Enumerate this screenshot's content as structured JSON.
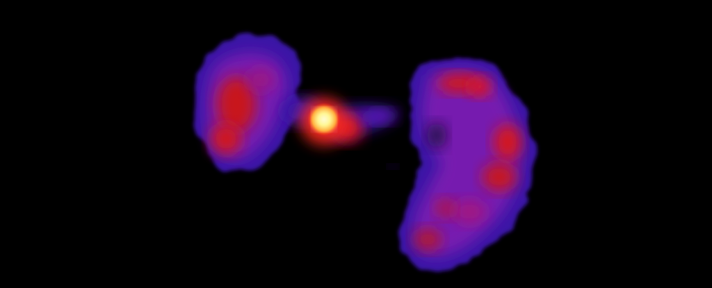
{
  "image": {
    "kind": "false-color radio image of a galaxy with twin lobes",
    "background": "#000000",
    "palette": {
      "outer": "#3b0f8f",
      "mid": "#7a1fb0",
      "inner": "#d4161e",
      "hot": "#ff3a1a",
      "core": "#fff36a"
    },
    "features": [
      "left-lobe",
      "central-core",
      "jet",
      "right-lobe"
    ]
  }
}
